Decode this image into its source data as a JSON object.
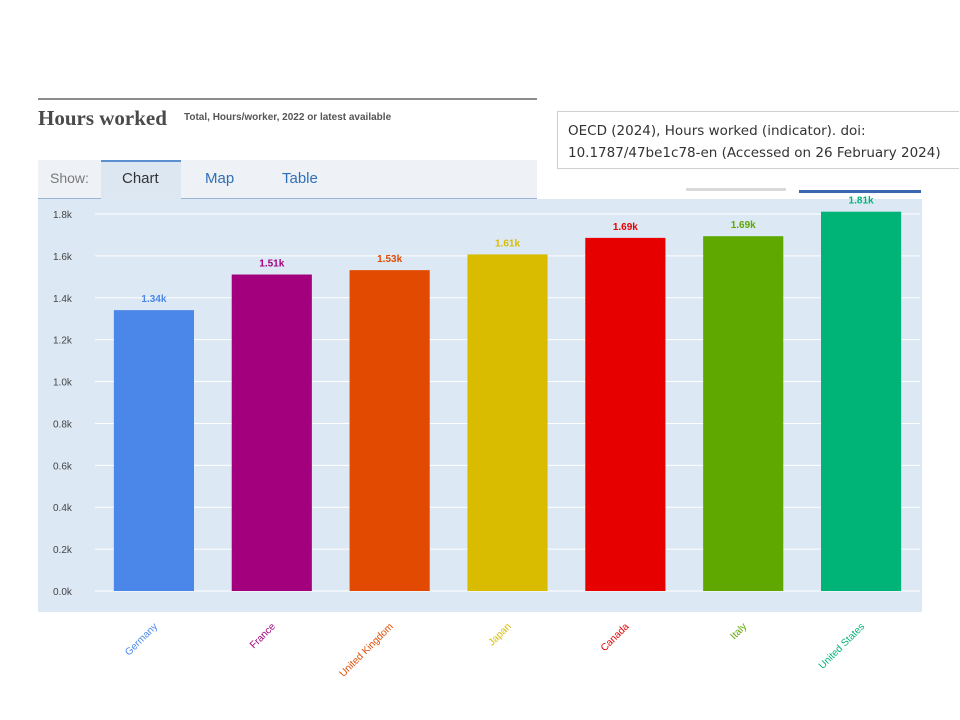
{
  "header": {
    "title": "Hours worked",
    "subtitle": "Total, Hours/worker, 2022 or latest available"
  },
  "citation": {
    "line1": "OECD (2024), Hours worked (indicator). doi:",
    "line2": "10.1787/47be1c78-en (Accessed on 26 February 2024)"
  },
  "tabs": {
    "show_label": "Show:",
    "chart": "Chart",
    "map": "Map",
    "table": "Table",
    "active": "Chart"
  },
  "colors": {
    "plot_background": "#dce8f4",
    "gridline": "#ffffff"
  },
  "chart_data": {
    "type": "bar",
    "title": "Hours worked",
    "categories": [
      "Germany",
      "France",
      "United Kingdom",
      "Japan",
      "Canada",
      "Italy",
      "United States"
    ],
    "values": [
      1341,
      1511,
      1532,
      1607,
      1686,
      1694,
      1811
    ],
    "data_labels": [
      "1.34k",
      "1.51k",
      "1.53k",
      "1.61k",
      "1.69k",
      "1.69k",
      "1.81k"
    ],
    "colors": [
      "#4a87e8",
      "#a3007e",
      "#e14a00",
      "#d9bc00",
      "#e60000",
      "#5ea800",
      "#00b377"
    ],
    "ylim": [
      0,
      1800
    ],
    "yticks": [
      0,
      200,
      400,
      600,
      800,
      1000,
      1200,
      1400,
      1600,
      1800
    ],
    "ytick_labels": [
      "0.0k",
      "0.2k",
      "0.4k",
      "0.6k",
      "0.8k",
      "1.0k",
      "1.2k",
      "1.4k",
      "1.6k",
      "1.8k"
    ],
    "grid": true,
    "legend": "none"
  }
}
